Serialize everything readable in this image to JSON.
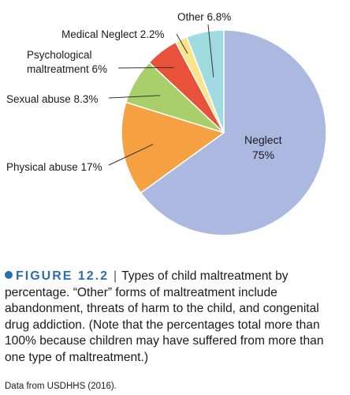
{
  "chart_data": {
    "type": "pie",
    "title": "",
    "slices": [
      {
        "label": "Neglect",
        "value": 75,
        "display": "75%",
        "color": "#abb8e0"
      },
      {
        "label": "Physical abuse",
        "value": 17,
        "display": "17%",
        "color": "#f5a142"
      },
      {
        "label": "Sexual abuse",
        "value": 8.3,
        "display": "8.3%",
        "color": "#a8cf6a"
      },
      {
        "label": "Psychological maltreatment",
        "value": 6,
        "display": "6%",
        "color": "#e8523a"
      },
      {
        "label": "Medical Neglect",
        "value": 2.2,
        "display": "2.2%",
        "color": "#fbe38a"
      },
      {
        "label": "Other",
        "value": 6.8,
        "display": "6.8%",
        "color": "#9fdbe0"
      }
    ],
    "labels": {
      "neglect_name": "Neglect",
      "neglect_value": "75%",
      "physical": "Physical abuse 17%",
      "sexual": "Sexual abuse 8.3%",
      "psych_line1": "Psychological",
      "psych_line2": "maltreatment 6%",
      "medical": "Medical Neglect 2.2%",
      "other": "Other 6.8%"
    }
  },
  "caption": {
    "figure_label": "FIGURE 12.2",
    "separator": "|",
    "text": "Types of child maltreatment by percentage. “Other” forms of maltreatment include abandonment, threats of harm to the child, and congenital drug addiction. (Note that the percentages total more than 100% because children may have suffered from more than one type of maltreatment.)"
  },
  "source": "Data from USDHHS (2016).",
  "colors": {
    "figure_accent": "#2a6db5"
  }
}
